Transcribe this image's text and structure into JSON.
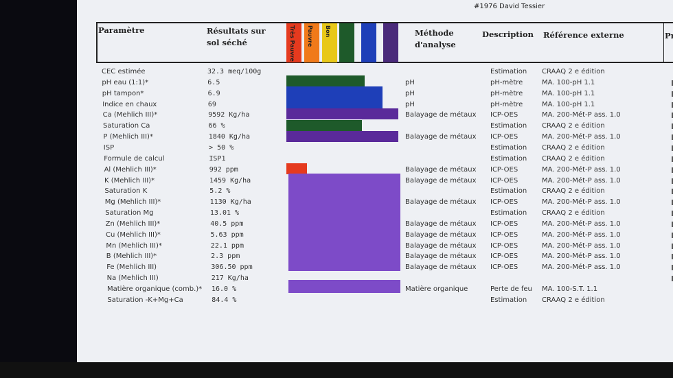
{
  "report": {
    "client": "#1976 David Tessier",
    "headers": {
      "parametre": "Paramètre",
      "resultats_l1": "Résultats sur",
      "resultats_l2": "sol séché",
      "methode_l1": "Méthode",
      "methode_l2": "d'analyse",
      "description": "Description",
      "reference": "Référence externe",
      "extra": "Pr"
    },
    "scale": [
      {
        "label": "Très Pauvre",
        "color": "#e53a1e"
      },
      {
        "label": "Pauvre",
        "color": "#f07a1a"
      },
      {
        "label": "Bon",
        "color": "#e8c818"
      },
      {
        "label": "",
        "color": "#1e5a2a"
      },
      {
        "label": "",
        "color": "#1e3fb8"
      },
      {
        "label": "",
        "color": "#4a2a7a"
      }
    ],
    "rows": [
      {
        "param": "CEC estimée",
        "value": "32.3  meq/100g",
        "method": "",
        "desc": "Estimation",
        "ref": "CRAAQ 2 e édition"
      },
      {
        "param": "pH eau (1:1)*",
        "value": "6.5",
        "method": "pH",
        "desc": "pH-mètre",
        "ref": "MA. 100-pH 1.1"
      },
      {
        "param": "pH tampon*",
        "value": "6.9",
        "method": "pH",
        "desc": "pH-mètre",
        "ref": "MA. 100-pH 1.1"
      },
      {
        "param": "Indice en chaux",
        "value": "69",
        "method": "pH",
        "desc": "pH-mètre",
        "ref": "MA. 100-pH 1.1"
      },
      {
        "param": "Ca (Mehlich III)*",
        "value": "9592  Kg/ha",
        "method": "Balayage de métaux",
        "desc": "ICP-OES",
        "ref": "MA. 200-Mét-P ass. 1.0"
      },
      {
        "param": "Saturation Ca",
        "value": "66  %",
        "method": "",
        "desc": "Estimation",
        "ref": "CRAAQ 2 e édition"
      },
      {
        "param": "P (Mehlich III)*",
        "value": "1840  Kg/ha",
        "method": "Balayage de métaux",
        "desc": "ICP-OES",
        "ref": "MA. 200-Mét-P ass. 1.0"
      },
      {
        "param": "ISP",
        "value": "> 50  %",
        "method": "",
        "desc": "Estimation",
        "ref": "CRAAQ 2 e édition"
      },
      {
        "param": "Formule de calcul",
        "value": "ISP1",
        "method": "",
        "desc": "Estimation",
        "ref": "CRAAQ 2 e édition"
      },
      {
        "param": "Al (Mehlich III)*",
        "value": "992  ppm",
        "method": "Balayage de métaux",
        "desc": "ICP-OES",
        "ref": "MA. 200-Mét-P ass. 1.0"
      },
      {
        "param": "K (Mehlich III)*",
        "value": "1459  Kg/ha",
        "method": "Balayage de métaux",
        "desc": "ICP-OES",
        "ref": "MA. 200-Mét-P ass. 1.0"
      },
      {
        "param": "Saturation K",
        "value": "5.2  %",
        "method": "",
        "desc": "Estimation",
        "ref": "CRAAQ 2 e édition"
      },
      {
        "param": "Mg (Mehlich III)*",
        "value": "1130  Kg/ha",
        "method": "Balayage de métaux",
        "desc": "ICP-OES",
        "ref": "MA. 200-Mét-P ass. 1.0"
      },
      {
        "param": "Saturation Mg",
        "value": "13.01  %",
        "method": "",
        "desc": "Estimation",
        "ref": "CRAAQ 2 e édition"
      },
      {
        "param": "Zn (Mehlich III)*",
        "value": "40.5  ppm",
        "method": "Balayage de métaux",
        "desc": "ICP-OES",
        "ref": "MA. 200-Mét-P ass. 1.0"
      },
      {
        "param": "Cu (Mehlich III)*",
        "value": "5.63  ppm",
        "method": "Balayage de métaux",
        "desc": "ICP-OES",
        "ref": "MA. 200-Mét-P ass. 1.0"
      },
      {
        "param": "Mn (Mehlich III)*",
        "value": "22.1  ppm",
        "method": "Balayage de métaux",
        "desc": "ICP-OES",
        "ref": "MA. 200-Mét-P ass. 1.0"
      },
      {
        "param": "B (Mehlich III)*",
        "value": "2.3  ppm",
        "method": "Balayage de métaux",
        "desc": "ICP-OES",
        "ref": "MA. 200-Mét-P ass. 1.0"
      },
      {
        "param": "Fe (Mehlich III)",
        "value": "306.50  ppm",
        "method": "Balayage de métaux",
        "desc": "ICP-OES",
        "ref": "MA. 200-Mét-P ass. 1.0"
      },
      {
        "param": "Na (Mehlich III)",
        "value": "217  Kg/ha",
        "method": "",
        "desc": "",
        "ref": ""
      },
      {
        "param": "Matière organique (comb.)*",
        "value": "16.0  %",
        "method": "Matière organique",
        "desc": "Perte de feu",
        "ref": "MA. 100-S.T. 1.1"
      },
      {
        "param": "Saturation -K+Mg+Ca",
        "value": "84.4  %",
        "method": "",
        "desc": "Estimation",
        "ref": "CRAAQ 2 e édition"
      }
    ]
  }
}
